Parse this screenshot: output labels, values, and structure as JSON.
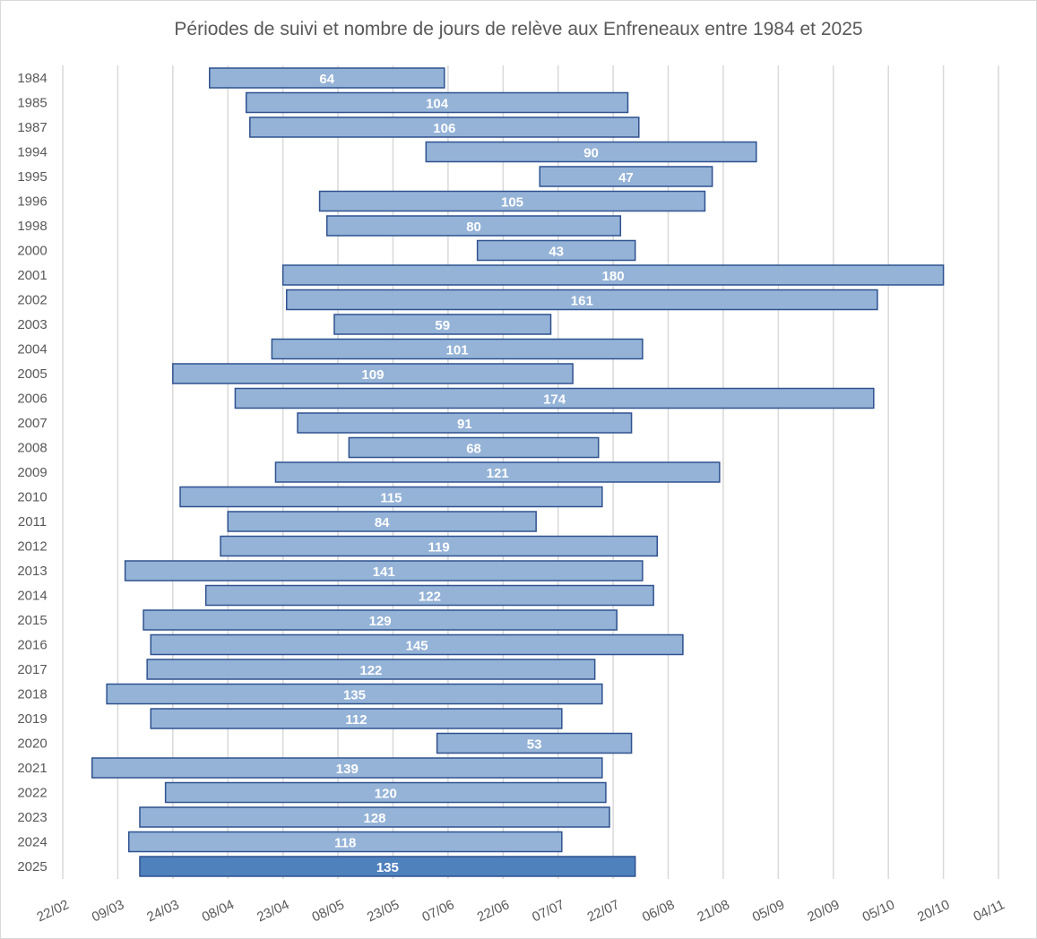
{
  "chart_data": {
    "type": "bar",
    "orientation": "horizontal-gantt",
    "title": "Périodes de suivi et nombre de jours de relève aux Enfreneaux entre 1984 et 2025",
    "xlabel": "",
    "ylabel": "",
    "x_ticks": [
      "22/02",
      "09/03",
      "24/03",
      "08/04",
      "23/04",
      "08/05",
      "23/05",
      "07/06",
      "22/06",
      "07/07",
      "22/07",
      "06/08",
      "21/08",
      "05/09",
      "20/09",
      "05/10",
      "20/10",
      "04/11"
    ],
    "xlim": [
      "22/02",
      "04/11"
    ],
    "grid": "vertical",
    "colors": {
      "bar": "#95b3d7",
      "bar_highlight": "#4f81bd",
      "border": "#2f528f",
      "grid": "#d9d9d9",
      "text": "#595959",
      "label": "#ffffff"
    },
    "rows": [
      {
        "year": "1984",
        "start": "03/04",
        "days": 64
      },
      {
        "year": "1985",
        "start": "13/04",
        "days": 104
      },
      {
        "year": "1987",
        "start": "14/04",
        "days": 106
      },
      {
        "year": "1994",
        "start": "01/06",
        "days": 90
      },
      {
        "year": "1995",
        "start": "02/07",
        "days": 47
      },
      {
        "year": "1996",
        "start": "03/05",
        "days": 105
      },
      {
        "year": "1998",
        "start": "05/05",
        "days": 80
      },
      {
        "year": "2000",
        "start": "15/06",
        "days": 43
      },
      {
        "year": "2001",
        "start": "23/04",
        "days": 180
      },
      {
        "year": "2002",
        "start": "24/04",
        "days": 161
      },
      {
        "year": "2003",
        "start": "07/05",
        "days": 59
      },
      {
        "year": "2004",
        "start": "20/04",
        "days": 101
      },
      {
        "year": "2005",
        "start": "24/03",
        "days": 109
      },
      {
        "year": "2006",
        "start": "10/04",
        "days": 174
      },
      {
        "year": "2007",
        "start": "27/04",
        "days": 91
      },
      {
        "year": "2008",
        "start": "11/05",
        "days": 68
      },
      {
        "year": "2009",
        "start": "21/04",
        "days": 121
      },
      {
        "year": "2010",
        "start": "26/03",
        "days": 115
      },
      {
        "year": "2011",
        "start": "08/04",
        "days": 84
      },
      {
        "year": "2012",
        "start": "06/04",
        "days": 119
      },
      {
        "year": "2013",
        "start": "11/03",
        "days": 141
      },
      {
        "year": "2014",
        "start": "02/04",
        "days": 122
      },
      {
        "year": "2015",
        "start": "16/03",
        "days": 129
      },
      {
        "year": "2016",
        "start": "18/03",
        "days": 145
      },
      {
        "year": "2017",
        "start": "17/03",
        "days": 122
      },
      {
        "year": "2018",
        "start": "06/03",
        "days": 135
      },
      {
        "year": "2019",
        "start": "18/03",
        "days": 112
      },
      {
        "year": "2020",
        "start": "04/06",
        "days": 53
      },
      {
        "year": "2021",
        "start": "02/03",
        "days": 139
      },
      {
        "year": "2022",
        "start": "22/03",
        "days": 120
      },
      {
        "year": "2023",
        "start": "15/03",
        "days": 128
      },
      {
        "year": "2024",
        "start": "12/03",
        "days": 118
      },
      {
        "year": "2025",
        "start": "15/03",
        "days": 135,
        "highlight": true
      }
    ]
  }
}
